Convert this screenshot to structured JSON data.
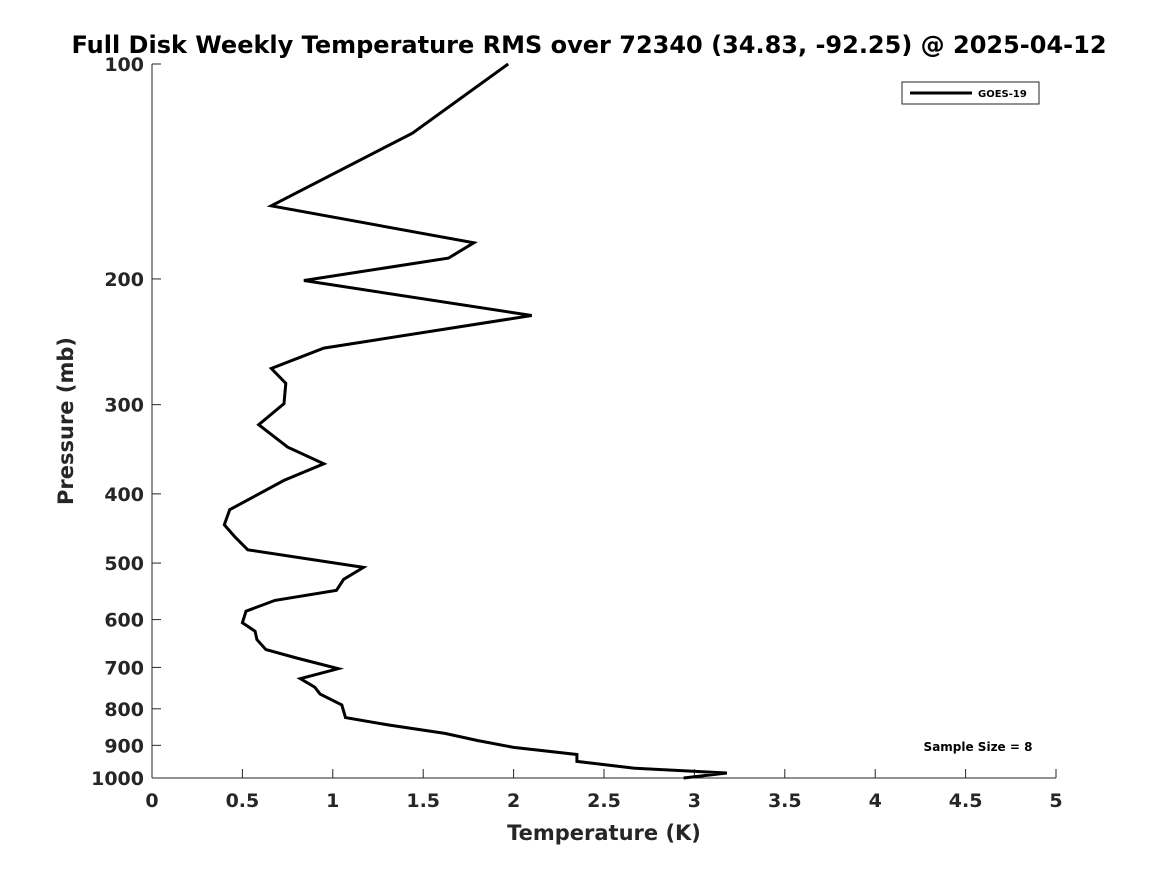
{
  "chart_data": {
    "type": "line",
    "title": "Full Disk Weekly Temperature RMS over 72340 (34.83, -92.25) @ 2025-04-12",
    "xlabel": "Temperature (K)",
    "ylabel": "Pressure (mb)",
    "xlim": [
      0,
      5
    ],
    "ylim": [
      100,
      1000
    ],
    "y_scale": "log",
    "y_reversed": true,
    "x_ticks": [
      0,
      0.5,
      1,
      1.5,
      2,
      2.5,
      3,
      3.5,
      4,
      4.5,
      5
    ],
    "x_tick_labels": [
      "0",
      "0.5",
      "1",
      "1.5",
      "2",
      "2.5",
      "3",
      "3.5",
      "4",
      "4.5",
      "5"
    ],
    "y_ticks": [
      100,
      200,
      300,
      400,
      500,
      600,
      700,
      800,
      900,
      1000
    ],
    "y_tick_labels": [
      "100",
      "200",
      "300",
      "400",
      "500",
      "600",
      "700",
      "800",
      "900",
      "1000"
    ],
    "grid": false,
    "legend_position": "top-right",
    "annotation": "Sample Size = 8",
    "series": [
      {
        "name": "GOES-19",
        "color": "#000000",
        "points": [
          [
            1.97,
            100
          ],
          [
            1.44,
            125
          ],
          [
            0.66,
            158
          ],
          [
            1.78,
            178
          ],
          [
            1.64,
            187
          ],
          [
            0.84,
            201
          ],
          [
            2.1,
            225
          ],
          [
            0.95,
            250
          ],
          [
            0.66,
            267
          ],
          [
            0.74,
            280
          ],
          [
            0.73,
            299
          ],
          [
            0.59,
            320
          ],
          [
            0.75,
            344
          ],
          [
            0.95,
            363
          ],
          [
            0.73,
            383
          ],
          [
            0.43,
            421
          ],
          [
            0.4,
            442
          ],
          [
            0.46,
            460
          ],
          [
            0.53,
            479
          ],
          [
            1.17,
            507
          ],
          [
            1.06,
            527
          ],
          [
            1.02,
            546
          ],
          [
            0.68,
            564
          ],
          [
            0.52,
            584
          ],
          [
            0.5,
            606
          ],
          [
            0.57,
            623
          ],
          [
            0.58,
            640
          ],
          [
            0.63,
            661
          ],
          [
            0.8,
            679
          ],
          [
            1.03,
            703
          ],
          [
            0.82,
            726
          ],
          [
            0.9,
            746
          ],
          [
            0.93,
            763
          ],
          [
            1.05,
            790
          ],
          [
            1.07,
            823
          ],
          [
            1.31,
            843
          ],
          [
            1.62,
            866
          ],
          [
            1.8,
            886
          ],
          [
            2.0,
            906
          ],
          [
            2.35,
            927
          ],
          [
            2.35,
            948
          ],
          [
            2.67,
            969
          ],
          [
            3.18,
            984
          ],
          [
            2.94,
            1000
          ]
        ]
      }
    ]
  }
}
